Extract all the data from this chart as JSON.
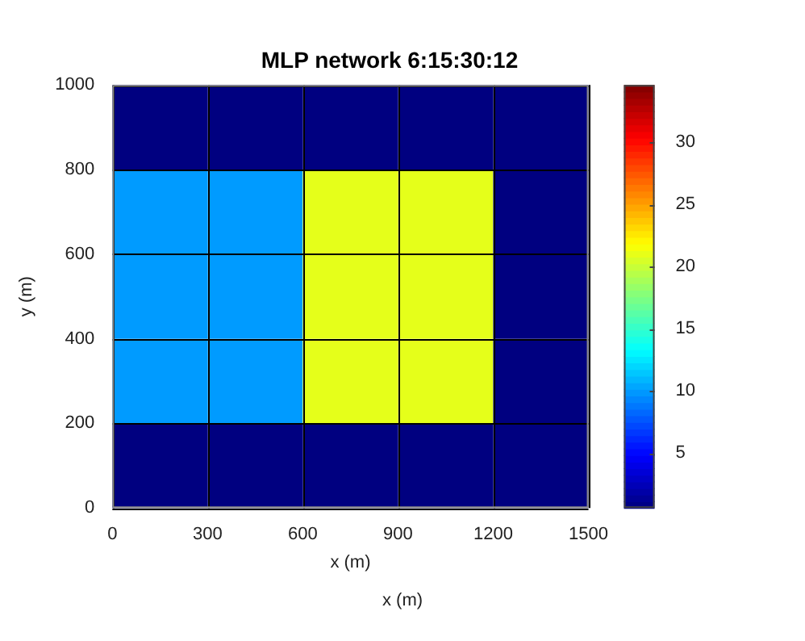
{
  "chart_data": {
    "type": "heatmap",
    "title": "MLP network 6:15:30:12",
    "xlabel": "x (m)",
    "ylabel": "y (m)",
    "xlim": [
      0,
      1500
    ],
    "xticks": [
      0,
      300,
      600,
      900,
      1200,
      1500
    ],
    "ylim": [
      0,
      1000
    ],
    "yticks": [
      0,
      200,
      400,
      600,
      800,
      1000
    ],
    "cells": [
      [
        0.6,
        0.6,
        0.6,
        0.6,
        0.6
      ],
      [
        10,
        10,
        21,
        21,
        0.6
      ],
      [
        10,
        10,
        21,
        21,
        0.6
      ],
      [
        10,
        10,
        21,
        21,
        0.6
      ],
      [
        0.6,
        0.6,
        0.6,
        0.6,
        0.6
      ]
    ],
    "clim": [
      0.6,
      34.6
    ],
    "cticks": [
      5,
      10,
      15,
      20,
      25,
      30
    ],
    "grid": true,
    "annotations": [
      "x (m)"
    ]
  }
}
